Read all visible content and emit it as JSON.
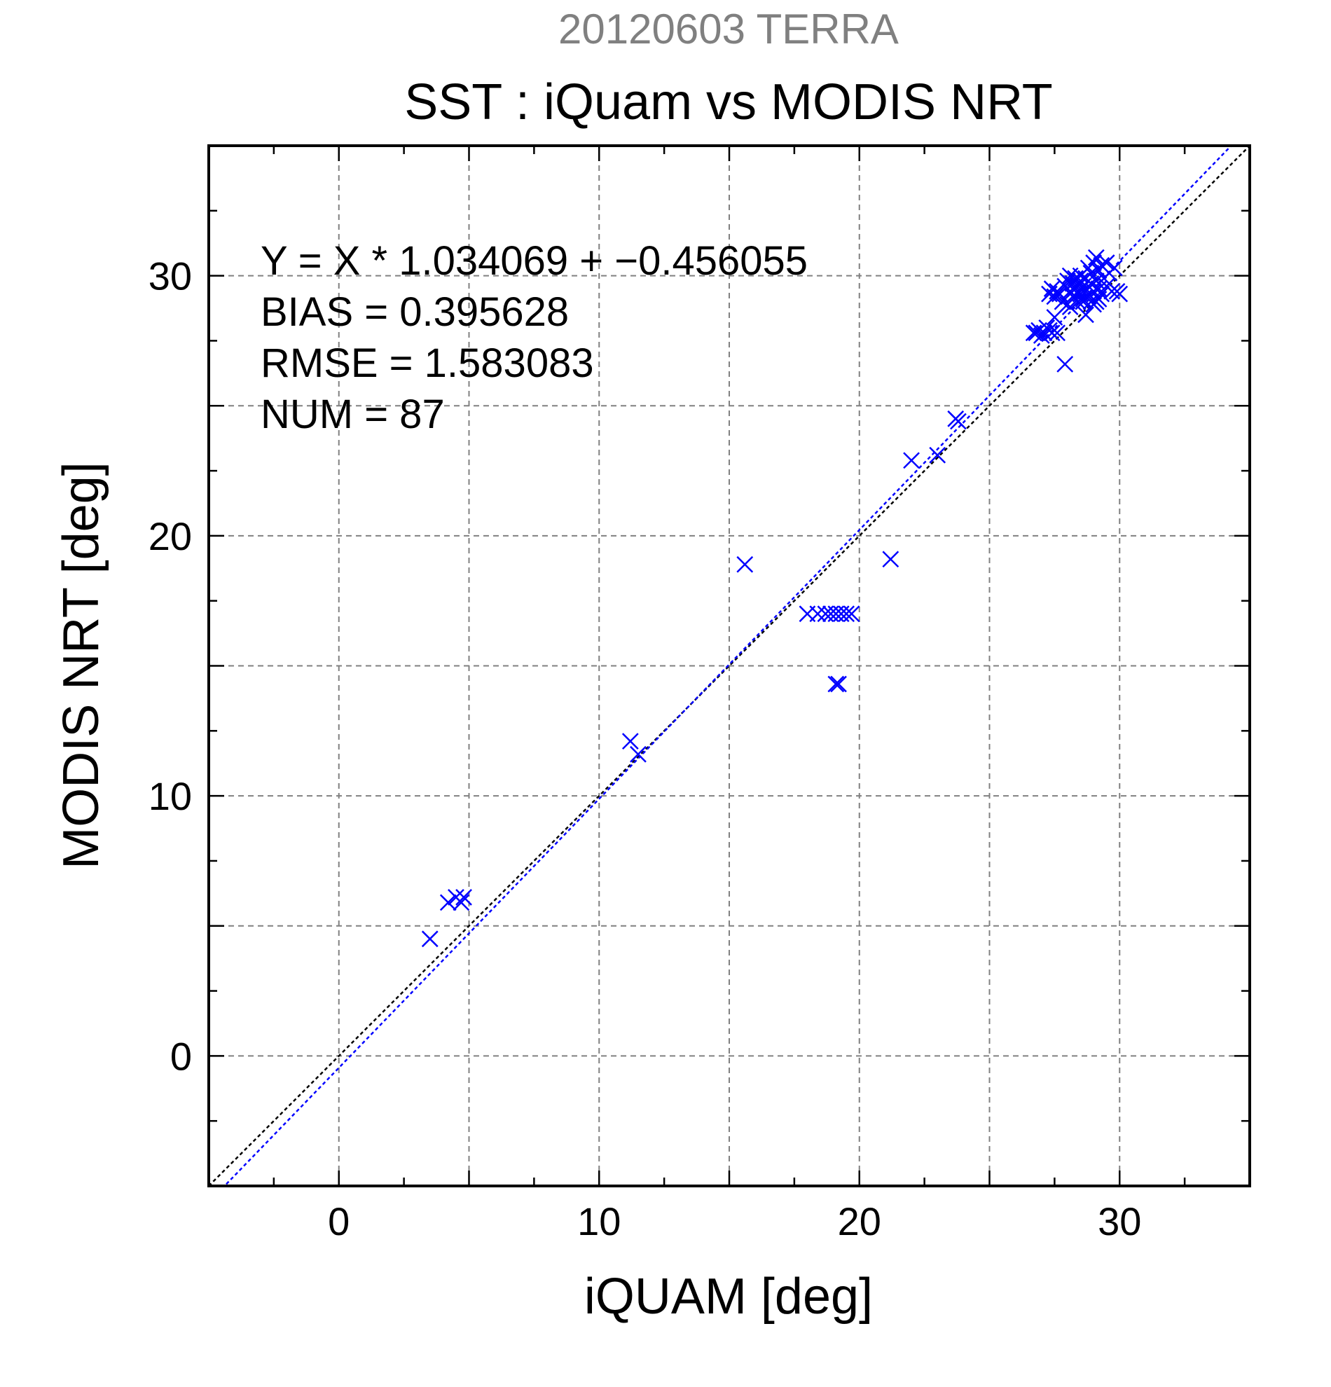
{
  "chart_data": {
    "type": "scatter",
    "supertitle": "20120603 TERRA",
    "title": "SST : iQuam vs MODIS NRT",
    "xlabel": "iQUAM [deg]",
    "ylabel": "MODIS NRT [deg]",
    "xlim": [
      -5,
      35
    ],
    "ylim": [
      -5,
      35
    ],
    "x_ticks": [
      0,
      10,
      20,
      30
    ],
    "y_ticks": [
      0,
      10,
      20,
      30
    ],
    "grid": true,
    "stats": [
      "Y = X * 1.034069 + −0.456055",
      "BIAS = 0.395628",
      "RMSE = 1.583083",
      "NUM = 87"
    ],
    "fit_line": {
      "slope": 1.034069,
      "intercept": -0.456055
    },
    "identity_line": {
      "slope": 1,
      "intercept": 0
    },
    "colors": {
      "points": "#0000ff",
      "fit_line": "#0000ff",
      "identity_line": "#000000",
      "grid": "#808080",
      "supertitle": "#808080"
    },
    "points": [
      [
        3.5,
        4.5
      ],
      [
        4.2,
        5.9
      ],
      [
        4.5,
        6.1
      ],
      [
        4.7,
        5.9
      ],
      [
        4.8,
        6.1
      ],
      [
        11.2,
        12.1
      ],
      [
        11.5,
        11.6
      ],
      [
        15.6,
        18.9
      ],
      [
        18.0,
        17.0
      ],
      [
        18.4,
        17.0
      ],
      [
        18.7,
        17.0
      ],
      [
        18.9,
        17.0
      ],
      [
        19.1,
        17.0
      ],
      [
        19.3,
        17.0
      ],
      [
        19.5,
        17.0
      ],
      [
        19.7,
        17.0
      ],
      [
        19.1,
        14.3
      ],
      [
        19.2,
        14.3
      ],
      [
        21.2,
        19.1
      ],
      [
        22.0,
        22.9
      ],
      [
        23.0,
        23.1
      ],
      [
        23.7,
        24.5
      ],
      [
        23.8,
        24.4
      ],
      [
        26.7,
        27.8
      ],
      [
        26.8,
        27.8
      ],
      [
        26.9,
        27.9
      ],
      [
        27.0,
        27.7
      ],
      [
        27.1,
        27.8
      ],
      [
        27.2,
        28.0
      ],
      [
        27.3,
        27.9
      ],
      [
        27.4,
        27.8
      ],
      [
        27.6,
        27.8
      ],
      [
        27.3,
        29.3
      ],
      [
        27.4,
        29.5
      ],
      [
        27.5,
        29.2
      ],
      [
        27.6,
        29.4
      ],
      [
        27.7,
        29.3
      ],
      [
        27.8,
        29.0
      ],
      [
        27.9,
        29.6
      ],
      [
        28.0,
        29.8
      ],
      [
        28.0,
        28.9
      ],
      [
        28.1,
        29.4
      ],
      [
        28.1,
        30.0
      ],
      [
        28.2,
        29.7
      ],
      [
        28.2,
        29.2
      ],
      [
        28.3,
        29.5
      ],
      [
        28.3,
        29.9
      ],
      [
        28.4,
        29.0
      ],
      [
        28.4,
        29.6
      ],
      [
        28.5,
        29.3
      ],
      [
        28.5,
        29.8
      ],
      [
        28.6,
        29.1
      ],
      [
        28.6,
        29.6
      ],
      [
        28.7,
        29.9
      ],
      [
        28.7,
        29.4
      ],
      [
        28.8,
        30.3
      ],
      [
        28.8,
        29.2
      ],
      [
        28.9,
        29.7
      ],
      [
        28.9,
        30.1
      ],
      [
        29.0,
        29.4
      ],
      [
        29.0,
        30.5
      ],
      [
        29.1,
        29.0
      ],
      [
        29.1,
        29.8
      ],
      [
        29.2,
        30.2
      ],
      [
        29.2,
        29.5
      ],
      [
        29.3,
        30.4
      ],
      [
        29.3,
        29.3
      ],
      [
        29.4,
        29.9
      ],
      [
        29.5,
        30.5
      ],
      [
        29.5,
        29.6
      ],
      [
        29.6,
        30.1
      ],
      [
        29.7,
        29.4
      ],
      [
        28.6,
        29.0
      ],
      [
        28.9,
        29.0
      ],
      [
        29.2,
        29.1
      ],
      [
        28.4,
        29.3
      ],
      [
        28.7,
        28.5
      ],
      [
        29.0,
        28.9
      ],
      [
        28.3,
        29.8
      ],
      [
        29.8,
        30.3
      ],
      [
        29.9,
        29.4
      ],
      [
        30.0,
        29.3
      ],
      [
        27.9,
        26.6
      ],
      [
        28.1,
        28.8
      ],
      [
        27.5,
        28.4
      ],
      [
        28.5,
        30.0
      ],
      [
        29.1,
        30.7
      ]
    ]
  }
}
